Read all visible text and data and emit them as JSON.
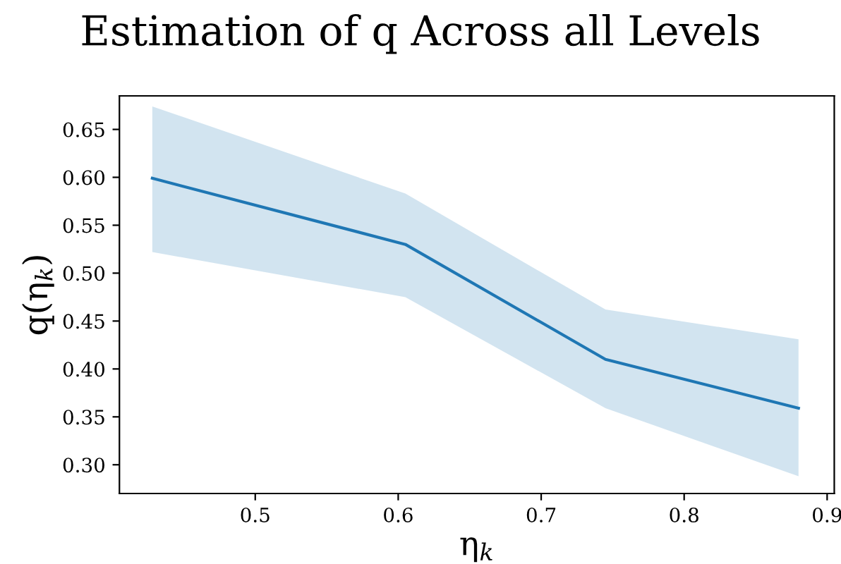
{
  "chart_data": {
    "type": "line",
    "title": "Estimation of q Across all Levels",
    "xlabel": "η$_{k}$",
    "ylabel": "q(η$_{k}$)",
    "x": [
      0.428,
      0.605,
      0.745,
      0.88
    ],
    "series": [
      {
        "color": "#1f77b4",
        "values": [
          0.599,
          0.53,
          0.41,
          0.359
        ],
        "lower": [
          0.522,
          0.475,
          0.359,
          0.288
        ],
        "upper": [
          0.674,
          0.583,
          0.462,
          0.431
        ]
      }
    ],
    "xlim": [
      0.405,
      0.905
    ],
    "ylim": [
      0.27,
      0.685
    ],
    "xticks": [
      0.5,
      0.6,
      0.7,
      0.8,
      0.9
    ],
    "yticks": [
      {
        "value": 0.3,
        "label": "0.30"
      },
      0.35,
      {
        "value": 0.4,
        "label": "0.40"
      },
      0.45,
      {
        "value": 0.5,
        "label": "0.50"
      },
      0.55,
      {
        "value": 0.6,
        "label": "0.60"
      },
      0.65
    ],
    "grid": false,
    "legend": false
  }
}
